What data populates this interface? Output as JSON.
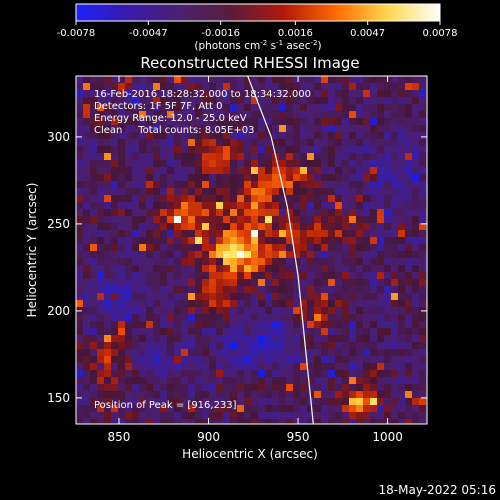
{
  "colorbar": {
    "tick_labels": [
      "-0.0078",
      "-0.0047",
      "-0.0016",
      "0.0016",
      "0.0047",
      "0.0078"
    ],
    "unit_label": "(photons cm",
    "unit_sup1": "-2",
    "unit_mid1": " s",
    "unit_sup2": "-1",
    "unit_mid2": " asec",
    "unit_sup3": "-2",
    "unit_end": ")",
    "colors": [
      "#1d22ff",
      "#3a1aa8",
      "#4a2070",
      "#5a1c3a",
      "#b3180b",
      "#ff6a00",
      "#ffd84c",
      "#ffffff"
    ]
  },
  "plot": {
    "title": "Reconstructed RHESSI Image",
    "xlabel": "Heliocentric X (arcsec)",
    "ylabel": "Heliocentric Y (arcsec)",
    "xticks": [
      850,
      900,
      950,
      1000
    ],
    "yticks": [
      150,
      200,
      250,
      300
    ],
    "xlim": [
      826,
      1022
    ],
    "ylim": [
      135,
      335
    ],
    "info_lines": [
      "16-Feb-2016 18:28:32.000 to 18:34:32.000",
      "Detectors: 1F 5F 7F, Att 0",
      "Energy Range: 12.0 - 25.0 keV",
      "Clean     Total counts: 8.05E+03"
    ],
    "peak_text": "Position of Peak = [916,233]",
    "limb": {
      "description_points_x": [
        952,
        955,
        958,
        960
      ],
      "points": [
        [
          920,
          340
        ],
        [
          935,
          300
        ],
        [
          944,
          260
        ],
        [
          950,
          220
        ],
        [
          954,
          180
        ],
        [
          957,
          150
        ],
        [
          959,
          130
        ]
      ]
    },
    "sources": [
      {
        "x": 916,
        "y": 233,
        "amp": 1.0,
        "sx": 12,
        "sy": 10
      },
      {
        "x": 888,
        "y": 255,
        "amp": 0.55,
        "sx": 12,
        "sy": 9
      },
      {
        "x": 925,
        "y": 262,
        "amp": 0.55,
        "sx": 9,
        "sy": 10
      },
      {
        "x": 942,
        "y": 278,
        "amp": 0.5,
        "sx": 10,
        "sy": 8
      },
      {
        "x": 904,
        "y": 290,
        "amp": 0.45,
        "sx": 8,
        "sy": 8
      },
      {
        "x": 903,
        "y": 208,
        "amp": 0.45,
        "sx": 7,
        "sy": 7
      },
      {
        "x": 948,
        "y": 245,
        "amp": 0.4,
        "sx": 9,
        "sy": 8
      },
      {
        "x": 972,
        "y": 248,
        "amp": 0.3,
        "sx": 10,
        "sy": 8
      },
      {
        "x": 985,
        "y": 148,
        "amp": 0.7,
        "sx": 7,
        "sy": 6
      },
      {
        "x": 845,
        "y": 170,
        "amp": 0.35,
        "sx": 8,
        "sy": 10
      },
      {
        "x": 960,
        "y": 200,
        "amp": 0.25,
        "sx": 8,
        "sy": 12
      },
      {
        "x": 850,
        "y": 208,
        "amp": -0.35,
        "sx": 12,
        "sy": 10
      },
      {
        "x": 930,
        "y": 180,
        "amp": -0.45,
        "sx": 16,
        "sy": 10
      },
      {
        "x": 875,
        "y": 170,
        "amp": -0.3,
        "sx": 10,
        "sy": 8
      },
      {
        "x": 1000,
        "y": 280,
        "amp": -0.3,
        "sx": 14,
        "sy": 14
      }
    ]
  },
  "footer": {
    "date_stamp": "18-May-2022 05:16"
  }
}
